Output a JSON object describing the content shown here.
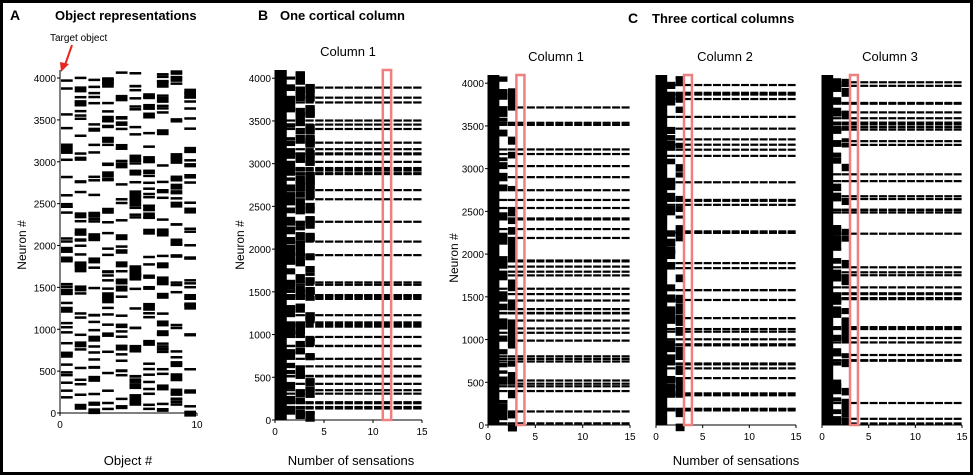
{
  "figure": {
    "background": "#ffffff",
    "frame_color": "#000000",
    "highlight_color": "#f08080",
    "annotation_color": "#e8251e"
  },
  "panels": {
    "A": {
      "letter": "A",
      "title": "Object representations"
    },
    "B": {
      "letter": "B",
      "title": "One cortical column"
    },
    "C": {
      "letter": "C",
      "title": "Three cortical columns"
    }
  },
  "chart_data": [
    {
      "id": "A",
      "type": "heatmap",
      "subplot_title": "",
      "xlabel": "Object #",
      "ylabel": "Neuron #",
      "xlim": [
        0,
        10
      ],
      "ylim": [
        0,
        4096
      ],
      "xticks": [
        "0",
        "10"
      ],
      "yticks": [
        "0",
        "500",
        "1000",
        "1500",
        "2000",
        "2500",
        "3000",
        "3500",
        "4000"
      ],
      "annotation": {
        "text": "Target object",
        "points_to_x": 0,
        "points_to_y": 4030
      },
      "active_neurons_per_object": 40,
      "num_objects": 10
    },
    {
      "id": "B",
      "type": "heatmap",
      "subplot_title": "Column 1",
      "xlabel": "Number of sensations",
      "ylabel": "Neuron #",
      "xlim": [
        0,
        15
      ],
      "ylim": [
        0,
        4096
      ],
      "xticks": [
        "0",
        "5",
        "10",
        "15"
      ],
      "yticks": [
        "0",
        "500",
        "1000",
        "1500",
        "2000",
        "2500",
        "3000",
        "3500",
        "4000"
      ],
      "highlight_sensation": 11,
      "full_activity_until": 1,
      "medium_activity_until": 3,
      "converged_from": 4
    },
    {
      "id": "C1",
      "type": "heatmap",
      "subplot_title": "Column 1",
      "xlabel": "",
      "ylabel": "Neuron #",
      "xlim": [
        0,
        15
      ],
      "ylim": [
        0,
        4096
      ],
      "xticks": [
        "0",
        "5",
        "10",
        "15"
      ],
      "yticks": [
        "0",
        "500",
        "1000",
        "1500",
        "2000",
        "2500",
        "3000",
        "3500",
        "4000"
      ],
      "highlight_sensation": 3,
      "full_activity_until": 1,
      "medium_activity_until": 2,
      "converged_from": 3
    },
    {
      "id": "C2",
      "type": "heatmap",
      "subplot_title": "Column 2",
      "xlabel": "Number of sensations",
      "ylabel": "",
      "xlim": [
        0,
        15
      ],
      "ylim": [
        0,
        4096
      ],
      "xticks": [
        "0",
        "5",
        "10",
        "15"
      ],
      "yticks": [],
      "highlight_sensation": 3,
      "full_activity_until": 1,
      "medium_activity_until": 2,
      "converged_from": 3
    },
    {
      "id": "C3",
      "type": "heatmap",
      "subplot_title": "Column 3",
      "xlabel": "",
      "ylabel": "",
      "xlim": [
        0,
        15
      ],
      "ylim": [
        0,
        4096
      ],
      "xticks": [
        "0",
        "5",
        "10",
        "15"
      ],
      "yticks": [],
      "highlight_sensation": 3,
      "full_activity_until": 1,
      "medium_activity_until": 2,
      "converged_from": 3
    }
  ]
}
